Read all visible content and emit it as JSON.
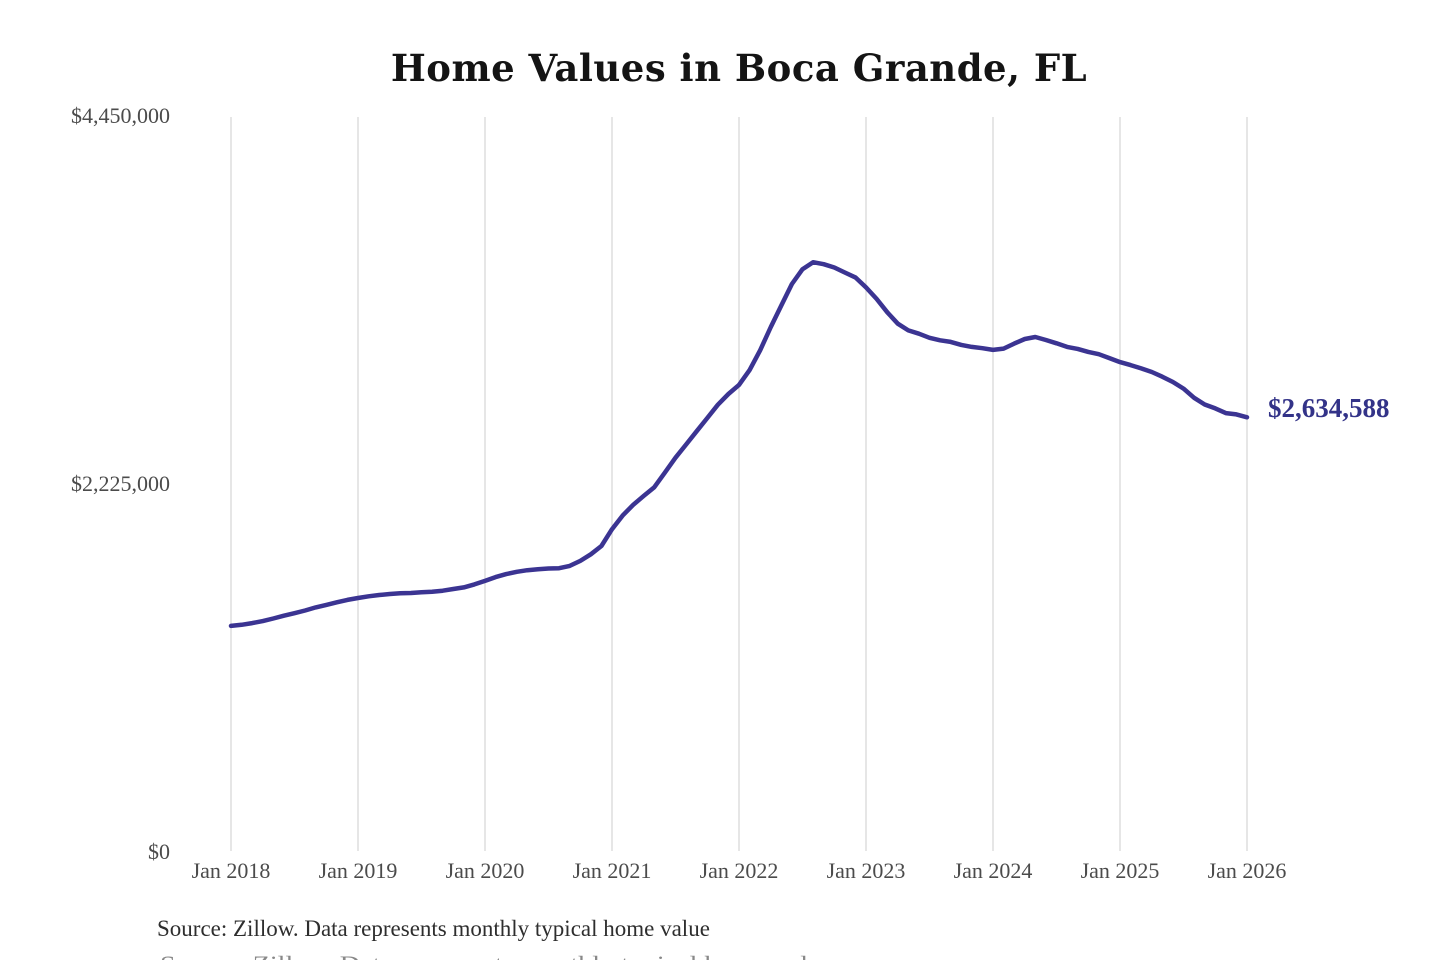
{
  "page": {
    "title": "Home Values in Boca Grande, FL",
    "source_note": "Source: Zillow. Data represents monthly typical home value"
  },
  "chart_data": {
    "type": "line",
    "title": "Home Values in Boca Grande, FL",
    "unit": "USD",
    "ylim": [
      0,
      4450000
    ],
    "grid": "vertical-only",
    "legend": "none",
    "colors": {
      "line": "#3b3492",
      "end_label": "#333388",
      "grid": "#cccccc",
      "ticks": "#4b4b4b",
      "title": "#141414"
    },
    "end_label": "$2,634,588",
    "end_value": 2634588,
    "y_ticks": [
      {
        "label": "$0",
        "value": 0
      },
      {
        "label": "$2,225,000",
        "value": 2225000
      },
      {
        "label": "$4,450,000",
        "value": 4450000
      }
    ],
    "x_ticks": [
      {
        "label": "Jan 2018",
        "month": "2018-01"
      },
      {
        "label": "Jan 2019",
        "month": "2019-01"
      },
      {
        "label": "Jan 2020",
        "month": "2020-01"
      },
      {
        "label": "Jan 2021",
        "month": "2021-01"
      },
      {
        "label": "Jan 2022",
        "month": "2022-01"
      },
      {
        "label": "Jan 2023",
        "month": "2023-01"
      },
      {
        "label": "Jan 2024",
        "month": "2024-01"
      },
      {
        "label": "Jan 2025",
        "month": "2025-01"
      },
      {
        "label": "Jan 2026",
        "month": "2026-01"
      }
    ],
    "x": [
      "2018-01",
      "2018-02",
      "2018-03",
      "2018-04",
      "2018-05",
      "2018-06",
      "2018-07",
      "2018-08",
      "2018-09",
      "2018-10",
      "2018-11",
      "2018-12",
      "2019-01",
      "2019-02",
      "2019-03",
      "2019-04",
      "2019-05",
      "2019-06",
      "2019-07",
      "2019-08",
      "2019-09",
      "2019-10",
      "2019-11",
      "2019-12",
      "2020-01",
      "2020-02",
      "2020-03",
      "2020-04",
      "2020-05",
      "2020-06",
      "2020-07",
      "2020-08",
      "2020-09",
      "2020-10",
      "2020-11",
      "2020-12",
      "2021-01",
      "2021-02",
      "2021-03",
      "2021-04",
      "2021-05",
      "2021-06",
      "2021-07",
      "2021-08",
      "2021-09",
      "2021-10",
      "2021-11",
      "2021-12",
      "2022-01",
      "2022-02",
      "2022-03",
      "2022-04",
      "2022-05",
      "2022-06",
      "2022-07",
      "2022-08",
      "2022-09",
      "2022-10",
      "2022-11",
      "2022-12",
      "2023-01",
      "2023-02",
      "2023-03",
      "2023-04",
      "2023-05",
      "2023-06",
      "2023-07",
      "2023-08",
      "2023-09",
      "2023-10",
      "2023-11",
      "2023-12",
      "2024-01",
      "2024-02",
      "2024-03",
      "2024-04",
      "2024-05",
      "2024-06",
      "2024-07",
      "2024-08",
      "2024-09",
      "2024-10",
      "2024-11",
      "2024-12",
      "2025-01",
      "2025-02",
      "2025-03",
      "2025-04",
      "2025-05",
      "2025-06",
      "2025-07",
      "2025-08",
      "2025-09",
      "2025-10",
      "2025-11",
      "2025-12",
      "2026-01"
    ],
    "series": [
      {
        "name": "Typical home value",
        "values": [
          1373000,
          1380000,
          1390000,
          1402000,
          1418000,
          1435000,
          1450000,
          1466000,
          1485000,
          1500000,
          1516000,
          1530000,
          1542000,
          1552000,
          1560000,
          1566000,
          1570000,
          1572000,
          1576000,
          1580000,
          1586000,
          1596000,
          1606000,
          1624000,
          1645000,
          1668000,
          1686000,
          1700000,
          1710000,
          1716000,
          1720000,
          1722000,
          1736000,
          1766000,
          1806000,
          1856000,
          1958000,
          2040000,
          2105000,
          2160000,
          2212000,
          2300000,
          2390000,
          2470000,
          2550000,
          2630000,
          2710000,
          2775000,
          2830000,
          2920000,
          3040000,
          3180000,
          3310000,
          3440000,
          3530000,
          3572000,
          3560000,
          3540000,
          3510000,
          3480000,
          3420000,
          3350000,
          3270000,
          3200000,
          3160000,
          3140000,
          3115000,
          3100000,
          3090000,
          3072000,
          3060000,
          3052000,
          3042000,
          3050000,
          3080000,
          3108000,
          3120000,
          3102000,
          3082000,
          3060000,
          3048000,
          3030000,
          3016000,
          2992000,
          2968000,
          2950000,
          2930000,
          2908000,
          2880000,
          2848000,
          2808000,
          2752000,
          2712000,
          2688000,
          2660000,
          2652000,
          2634588
        ]
      }
    ]
  }
}
